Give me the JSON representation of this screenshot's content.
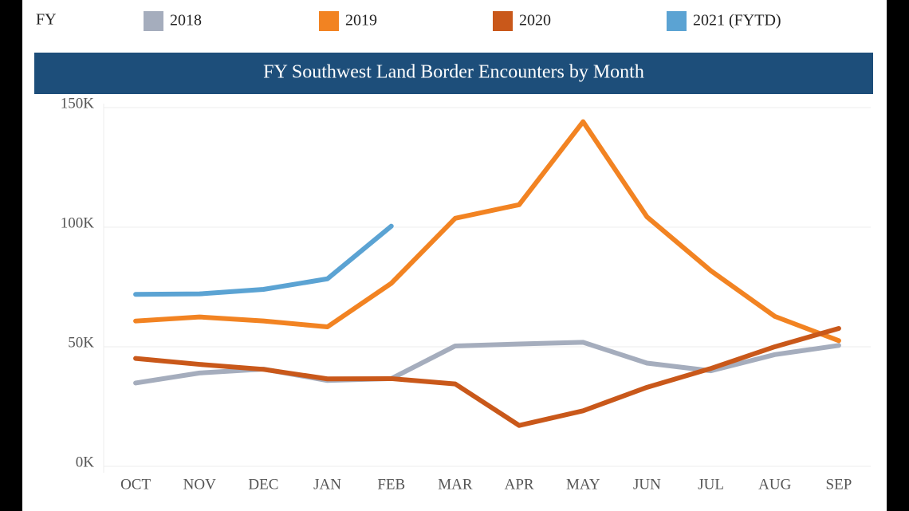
{
  "chart_data": {
    "type": "line",
    "title": "FY Southwest Land Border Encounters by Month",
    "legend_title": "FY",
    "categories": [
      "OCT",
      "NOV",
      "DEC",
      "JAN",
      "FEB",
      "MAR",
      "APR",
      "MAY",
      "JUN",
      "JUL",
      "AUG",
      "SEP"
    ],
    "series": [
      {
        "name": "2018",
        "color": "#a5adbd",
        "values": [
          34854,
          39041,
          40669,
          35911,
          36691,
          50347,
          51168,
          51862,
          43180,
          39953,
          46719,
          50568
        ]
      },
      {
        "name": "2019",
        "color": "#f28322",
        "values": [
          60772,
          62469,
          60779,
          58317,
          76545,
          103731,
          109415,
          144116,
          104311,
          81777,
          62707,
          52546
        ]
      },
      {
        "name": "2020",
        "color": "#c9581a",
        "values": [
          45139,
          42643,
          40565,
          36585,
          36687,
          34460,
          17106,
          23237,
          33049,
          40929,
          50014,
          57674
        ]
      },
      {
        "name": "2021 (FYTD)",
        "color": "#5ba3d3",
        "values": [
          71929,
          72113,
          73994,
          78414,
          100441,
          null,
          null,
          null,
          null,
          null,
          null,
          null
        ]
      }
    ],
    "ylim": [
      0,
      150000
    ],
    "yticks": [
      {
        "value": 0,
        "label": "0K"
      },
      {
        "value": 50000,
        "label": "50K"
      },
      {
        "value": 100000,
        "label": "100K"
      },
      {
        "value": 150000,
        "label": "150K"
      }
    ],
    "grid": true,
    "legend_position": "top"
  }
}
